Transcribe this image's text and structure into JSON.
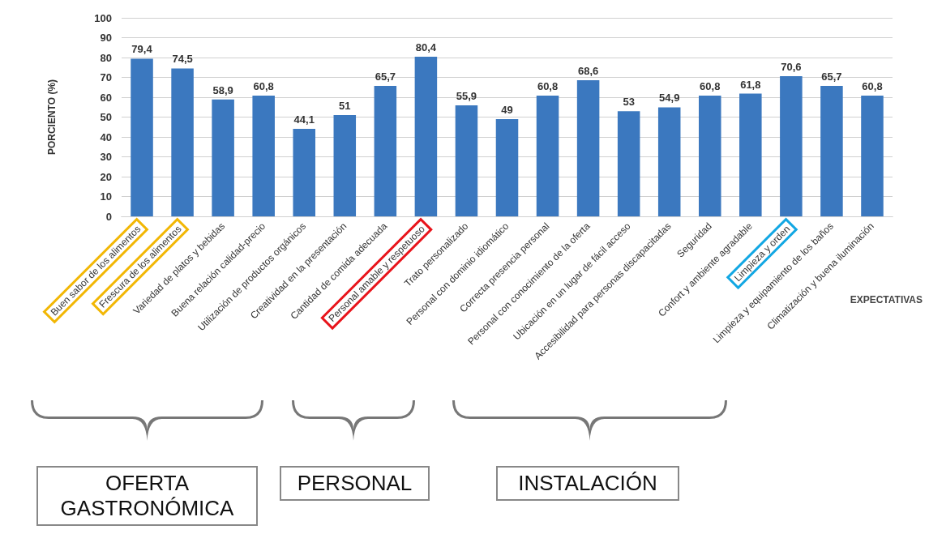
{
  "chart_data": {
    "type": "bar",
    "ylabel": "PORCIENTO (%)",
    "xlabel": "EXPECTATIVAS",
    "categories": [
      "Buen sabor de los alimentos",
      "Frescura de los alimentos",
      "Variedad de platos y bebidas",
      "Buena relación calidad-precio",
      "Utilización de productos orgánicos",
      "Creatividad en la presentación",
      "Cantidad de comida adecuada",
      "Personal amable y respetuoso",
      "Trato personalizado",
      "Personal con dominio idiomático",
      "Correcta presencia personal",
      "Personal con conocimiento de la oferta",
      "Ubicación en un lugar de fácil acceso",
      "Accesibilidad para personas discapacitadas",
      "Seguridad",
      "Confort y ambiente agradable",
      "Limpieza y orden",
      "Limpieza y equipamiento de los baños",
      "Climatización y buena iluminación"
    ],
    "values": [
      79.4,
      74.5,
      58.9,
      60.8,
      44.1,
      51,
      65.7,
      80.4,
      55.9,
      49,
      60.8,
      68.6,
      53,
      54.9,
      60.8,
      61.8,
      70.6,
      65.7,
      60.8
    ],
    "color": "#3b78bf",
    "ylim": [
      0,
      100
    ],
    "yticks": [
      0,
      10,
      20,
      30,
      40,
      50,
      60,
      70,
      80,
      90,
      100
    ],
    "value_labels": [
      "79,4",
      "74,5",
      "58,9",
      "60,8",
      "44,1",
      "51",
      "65,7",
      "80,4",
      "55,9",
      "49",
      "60,8",
      "68,6",
      "53",
      "54,9",
      "60,8",
      "61,8",
      "70,6",
      "65,7",
      "60,8"
    ],
    "grid": "y",
    "annotations": [
      "OFERTA GASTRONÓMICA",
      "PERSONAL",
      "INSTALACIÓN"
    ]
  }
}
